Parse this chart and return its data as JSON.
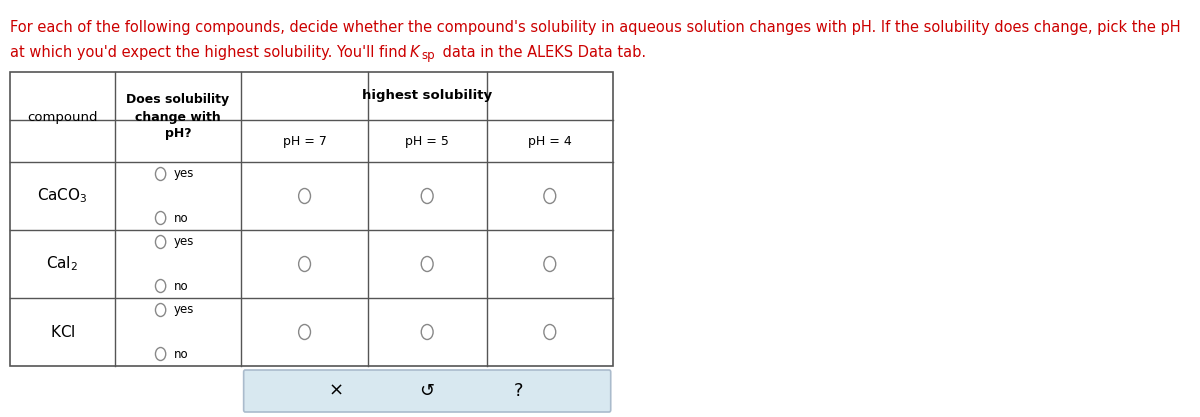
{
  "header_text": "For each of the following compounds, decide whether the compound's solubility in aqueous solution changes with pH. If the solubility does change, pick the pH\nat which you'd expect the highest solubility. You'll find K",
  "header_suffix": " data in the ALEKS Data tab.",
  "ksp_main": "K",
  "ksp_sub": "sp",
  "compounds": [
    "CaCO₃",
    "CaI₂",
    "KCl"
  ],
  "col_headers": [
    "Does solubility\nchange with\npH?",
    "highest solubility",
    "pH = 7",
    "pH = 5",
    "pH = 4"
  ],
  "col1_header": "compound",
  "col2_header": "Does solubility\nchange with\npH?",
  "col3_header": "highest solubility",
  "ph_cols": [
    "pH = 7",
    "pH = 5",
    "pH = 4"
  ],
  "yes_no": [
    "yes",
    "no"
  ],
  "bg_color": "#ffffff",
  "table_border_color": "#555555",
  "text_color": "#000000",
  "radio_color": "#888888",
  "radio_fill": "#f0f0f0",
  "header_color": "#cc0000",
  "bottom_box_color": "#d8e8f0",
  "bottom_box_border": "#aabbcc",
  "bottom_symbols": [
    "×",
    "↺",
    "?"
  ],
  "font_size_header": 10.5,
  "font_size_table": 9.5,
  "font_size_compound": 10,
  "font_size_bottom": 13
}
